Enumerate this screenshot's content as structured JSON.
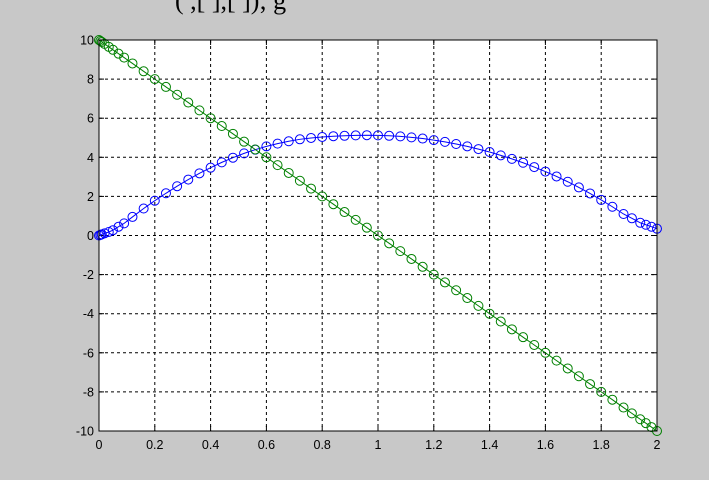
{
  "figure": {
    "title_partial": "(         ,[     ],[      ]);  g",
    "background": "#c8c8c8",
    "axes_background": "#ffffff"
  },
  "chart_data": {
    "type": "line",
    "grid": true,
    "xlim": [
      0,
      2
    ],
    "ylim": [
      -10,
      10
    ],
    "xticks": [
      0,
      0.2,
      0.4,
      0.6,
      0.8,
      1,
      1.2,
      1.4,
      1.6,
      1.8,
      2
    ],
    "xtick_labels": [
      "0",
      "0.2",
      "0.4",
      "0.6",
      "0.8",
      "1",
      "1.2",
      "1.4",
      "1.6",
      "1.8",
      "2"
    ],
    "yticks": [
      10,
      8,
      6,
      4,
      2,
      0,
      -2,
      -4,
      -6,
      -8,
      -10
    ],
    "ytick_labels": [
      "10",
      "8",
      "6",
      "4",
      "2",
      "0",
      "-2",
      "-4",
      "-6",
      "-8",
      "-10"
    ],
    "marker": "circle",
    "series": [
      {
        "color": "#0000ff",
        "x": [
          0,
          0.005,
          0.01,
          0.02,
          0.035,
          0.05,
          0.07,
          0.09,
          0.12,
          0.16,
          0.2,
          0.24,
          0.28,
          0.32,
          0.36,
          0.4,
          0.44,
          0.48,
          0.52,
          0.56,
          0.6,
          0.64,
          0.68,
          0.72,
          0.76,
          0.8,
          0.84,
          0.88,
          0.92,
          0.96,
          1.0,
          1.04,
          1.08,
          1.12,
          1.16,
          1.2,
          1.24,
          1.28,
          1.32,
          1.36,
          1.4,
          1.44,
          1.48,
          1.52,
          1.56,
          1.6,
          1.64,
          1.68,
          1.72,
          1.76,
          1.8,
          1.84,
          1.88,
          1.91,
          1.94,
          1.96,
          1.98,
          2.0
        ],
        "y": [
          0.0,
          0.03,
          0.06,
          0.11,
          0.18,
          0.27,
          0.45,
          0.62,
          0.95,
          1.38,
          1.78,
          2.16,
          2.52,
          2.86,
          3.18,
          3.47,
          3.74,
          3.98,
          4.2,
          4.39,
          4.56,
          4.7,
          4.82,
          4.92,
          4.99,
          5.04,
          5.08,
          5.1,
          5.12,
          5.13,
          5.12,
          5.1,
          5.07,
          5.02,
          4.96,
          4.88,
          4.79,
          4.68,
          4.56,
          4.42,
          4.27,
          4.1,
          3.92,
          3.72,
          3.5,
          3.27,
          3.02,
          2.75,
          2.46,
          2.15,
          1.82,
          1.47,
          1.1,
          0.88,
          0.65,
          0.55,
          0.45,
          0.35
        ]
      },
      {
        "color": "#008000",
        "x": [
          0,
          0.005,
          0.01,
          0.02,
          0.035,
          0.05,
          0.07,
          0.09,
          0.12,
          0.16,
          0.2,
          0.24,
          0.28,
          0.32,
          0.36,
          0.4,
          0.44,
          0.48,
          0.52,
          0.56,
          0.6,
          0.64,
          0.68,
          0.72,
          0.76,
          0.8,
          0.84,
          0.88,
          0.92,
          0.96,
          1.0,
          1.04,
          1.08,
          1.12,
          1.16,
          1.2,
          1.24,
          1.28,
          1.32,
          1.36,
          1.4,
          1.44,
          1.48,
          1.52,
          1.56,
          1.6,
          1.64,
          1.68,
          1.72,
          1.76,
          1.8,
          1.84,
          1.88,
          1.91,
          1.94,
          1.96,
          1.98,
          2.0
        ],
        "y": [
          10.0,
          9.95,
          9.9,
          9.8,
          9.65,
          9.5,
          9.3,
          9.1,
          8.8,
          8.4,
          8.0,
          7.6,
          7.2,
          6.8,
          6.4,
          6.0,
          5.6,
          5.2,
          4.8,
          4.4,
          4.0,
          3.6,
          3.2,
          2.8,
          2.4,
          2.0,
          1.6,
          1.2,
          0.8,
          0.4,
          0.0,
          -0.4,
          -0.8,
          -1.2,
          -1.6,
          -2.0,
          -2.4,
          -2.8,
          -3.2,
          -3.6,
          -4.0,
          -4.4,
          -4.8,
          -5.2,
          -5.6,
          -6.0,
          -6.4,
          -6.8,
          -7.2,
          -7.6,
          -8.0,
          -8.4,
          -8.8,
          -9.1,
          -9.4,
          -9.6,
          -9.8,
          -10.0
        ]
      }
    ]
  }
}
